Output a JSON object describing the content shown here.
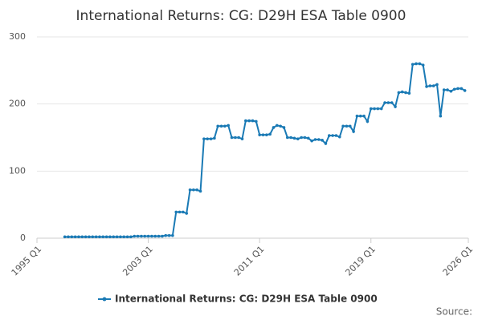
{
  "chart_data": {
    "type": "line",
    "title": "International Returns: CG: D29H ESA Table 0900",
    "source": "Source:",
    "x": [
      1997,
      1997.25,
      1997.5,
      1997.75,
      1998,
      1998.25,
      1998.5,
      1998.75,
      1999,
      1999.25,
      1999.5,
      1999.75,
      2000,
      2000.25,
      2000.5,
      2000.75,
      2001,
      2001.25,
      2001.5,
      2001.75,
      2002,
      2002.25,
      2002.5,
      2002.75,
      2003,
      2003.25,
      2003.5,
      2003.75,
      2004,
      2004.25,
      2004.5,
      2004.75,
      2005,
      2005.25,
      2005.5,
      2005.75,
      2006,
      2006.25,
      2006.5,
      2006.75,
      2007,
      2007.25,
      2007.5,
      2007.75,
      2008,
      2008.25,
      2008.5,
      2008.75,
      2009,
      2009.25,
      2009.5,
      2009.75,
      2010,
      2010.25,
      2010.5,
      2010.75,
      2011,
      2011.25,
      2011.5,
      2011.75,
      2012,
      2012.25,
      2012.5,
      2012.75,
      2013,
      2013.25,
      2013.5,
      2013.75,
      2014,
      2014.25,
      2014.5,
      2014.75,
      2015,
      2015.25,
      2015.5,
      2015.75,
      2016,
      2016.25,
      2016.5,
      2016.75,
      2017,
      2017.25,
      2017.5,
      2017.75,
      2018,
      2018.25,
      2018.5,
      2018.75,
      2019,
      2019.25,
      2019.5,
      2019.75,
      2020,
      2020.25,
      2020.5,
      2020.75,
      2021,
      2021.25,
      2021.5,
      2021.75,
      2022,
      2022.25,
      2022.5,
      2022.75,
      2023,
      2023.25,
      2023.5,
      2023.75,
      2024,
      2024.25,
      2024.5,
      2024.75,
      2025,
      2025.25,
      2025.5,
      2025.75
    ],
    "series": [
      {
        "name": "International Returns: CG: D29H ESA Table 0900",
        "color": "#1a7ab5",
        "values": [
          2,
          2,
          2,
          2,
          2,
          2,
          2,
          2,
          2,
          2,
          2,
          2,
          2,
          2,
          2,
          2,
          2,
          2,
          2,
          2,
          3,
          3,
          3,
          3,
          3,
          3,
          3,
          3,
          3,
          4,
          4,
          4,
          39,
          39,
          39,
          37,
          72,
          72,
          72,
          70,
          148,
          148,
          148,
          149,
          167,
          167,
          167,
          168,
          150,
          150,
          150,
          148,
          175,
          175,
          175,
          174,
          154,
          154,
          154,
          155,
          165,
          168,
          167,
          165,
          150,
          150,
          149,
          148,
          150,
          150,
          149,
          145,
          147,
          147,
          146,
          141,
          153,
          153,
          153,
          151,
          167,
          167,
          167,
          159,
          182,
          182,
          182,
          174,
          193,
          193,
          193,
          193,
          202,
          202,
          202,
          196,
          217,
          218,
          217,
          216,
          259,
          260,
          260,
          258,
          226,
          227,
          227,
          229,
          182,
          221,
          221,
          219,
          222,
          223,
          223,
          220
        ]
      }
    ],
    "xlim": [
      1995,
      2026
    ],
    "xticks": [
      {
        "value": 1995,
        "label": "1995 Q1"
      },
      {
        "value": 2003,
        "label": "2003 Q1"
      },
      {
        "value": 2011,
        "label": "2011 Q1"
      },
      {
        "value": 2019,
        "label": "2019 Q1"
      },
      {
        "value": 2026,
        "label": "2026 Q1"
      }
    ],
    "ylim": [
      0,
      300
    ],
    "yticks": [
      0,
      100,
      200,
      300
    ],
    "grid": true
  }
}
